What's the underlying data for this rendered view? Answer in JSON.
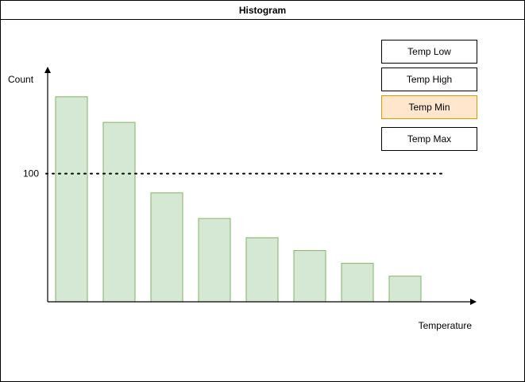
{
  "title": "Histogram",
  "chart_data": {
    "type": "bar",
    "title": "Histogram",
    "xlabel": "Temperature",
    "ylabel": "Count",
    "series": [
      {
        "values": [
          160,
          140,
          85,
          65,
          50,
          40,
          30,
          20
        ]
      }
    ],
    "ylim": [
      0,
      176
    ],
    "y_ticks": [
      100
    ],
    "reference_line": {
      "value": 100,
      "style": "dotted"
    },
    "grid": false,
    "legend_position": "top-right",
    "bar_fill": "#d5e8d4",
    "bar_stroke": "#82b366"
  },
  "legend": {
    "items": [
      {
        "label": "Temp Low",
        "active": false
      },
      {
        "label": "Temp High",
        "active": false
      },
      {
        "label": "Temp Min",
        "active": true
      },
      {
        "label": "Temp Max",
        "active": false
      }
    ],
    "active_fill": "#ffe6cc",
    "active_stroke": "#d79b00"
  }
}
